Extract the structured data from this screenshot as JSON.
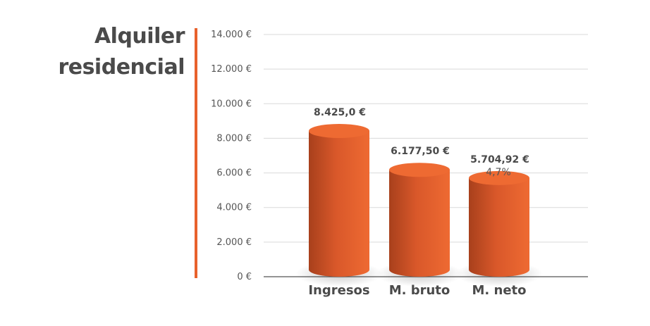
{
  "title_lines": [
    "Alquiler",
    "residencial"
  ],
  "colors": {
    "accent": "#e8612c",
    "bar_light": "#ee6a32",
    "bar_dark": "#a8401c",
    "grid": "#d9d9d9",
    "text": "#4a4a4a"
  },
  "chart_data": {
    "type": "bar",
    "title": "Alquiler residencial",
    "categories": [
      "Ingresos",
      "M. bruto",
      "M. neto"
    ],
    "values": [
      8425.0,
      6177.5,
      5704.92
    ],
    "data_labels": [
      "8.425,0 €",
      "6.177,50 €",
      "5.704,92 €"
    ],
    "annotations": [
      "",
      "",
      "4,7%"
    ],
    "ylim": [
      0,
      14000
    ],
    "yticks": [
      0,
      2000,
      4000,
      6000,
      8000,
      10000,
      12000,
      14000
    ],
    "ytick_labels": [
      "0 €",
      "2.000 €",
      "4.000 €",
      "6.000 €",
      "8.000 €",
      "10.000 €",
      "12.000 €",
      "14.000 €"
    ],
    "grid": true,
    "legend": "none"
  }
}
